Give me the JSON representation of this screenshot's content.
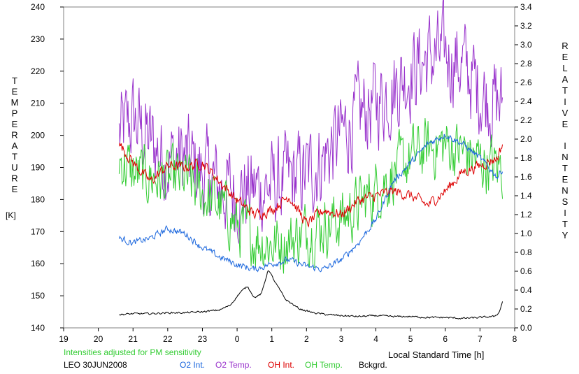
{
  "chart_data": {
    "type": "line",
    "left_axis": {
      "label_letters": [
        "T",
        "E",
        "M",
        "P",
        "E",
        "R",
        "A",
        "T",
        "U",
        "R",
        "E"
      ],
      "unit": "[K]",
      "ylim": [
        140,
        240
      ],
      "ticks": [
        "140",
        "150",
        "160",
        "170",
        "180",
        "190",
        "200",
        "210",
        "220",
        "230",
        "240"
      ]
    },
    "right_axis": {
      "label_letters_1": [
        "R",
        "E",
        "L",
        "A",
        "T",
        "I",
        "V",
        "E"
      ],
      "label_letters_2": [
        "I",
        "N",
        "T",
        "E",
        "N",
        "S",
        "I",
        "T",
        "Y"
      ],
      "ylim": [
        0.0,
        3.4
      ],
      "ticks": [
        "0.0",
        "0.2",
        "0.4",
        "0.6",
        "0.8",
        "1.0",
        "1.2",
        "1.4",
        "1.6",
        "1.8",
        "2.0",
        "2.2",
        "2.4",
        "2.6",
        "2.8",
        "3.0",
        "3.2",
        "3.4"
      ]
    },
    "x_axis": {
      "label": "Local Standard Time [h]",
      "xlim": [
        19,
        32
      ],
      "ticks": [
        "19",
        "20",
        "21",
        "22",
        "23",
        "0",
        "1",
        "2",
        "3",
        "4",
        "5",
        "6",
        "7",
        "8"
      ]
    },
    "note": "Intensities adjusted for PM sensitivity",
    "station": "LEO 30JUN2008",
    "series": [
      {
        "name": "O2 Temp.",
        "axis": "left",
        "color": "#9933cc",
        "noise": 12,
        "x": [
          20.6,
          21.0,
          21.5,
          22.0,
          22.5,
          23.0,
          23.5,
          24.0,
          24.5,
          25.0,
          25.5,
          26.0,
          26.5,
          27.0,
          27.5,
          28.0,
          28.5,
          29.0,
          29.5,
          30.0,
          30.5,
          31.0,
          31.5,
          31.65
        ],
        "y": [
          200,
          205,
          198,
          192,
          193,
          188,
          184,
          182,
          183,
          184,
          186,
          188,
          193,
          200,
          206,
          210,
          215,
          220,
          224,
          225,
          222,
          214,
          210,
          209
        ]
      },
      {
        "name": "OH Temp.",
        "axis": "left",
        "color": "#33cc33",
        "noise": 8,
        "x": [
          20.6,
          21.0,
          21.5,
          22.0,
          22.5,
          23.0,
          23.5,
          24.0,
          24.5,
          25.0,
          25.5,
          26.0,
          26.5,
          27.0,
          27.5,
          28.0,
          28.5,
          29.0,
          29.5,
          30.0,
          30.5,
          31.0,
          31.5,
          31.65
        ],
        "y": [
          193,
          188,
          187,
          186,
          186,
          182,
          178,
          172,
          168,
          166,
          167,
          170,
          172,
          174,
          178,
          183,
          188,
          193,
          196,
          197,
          195,
          192,
          190,
          190
        ]
      },
      {
        "name": "OH Int.",
        "axis": "right",
        "color": "#dd0000",
        "noise": 0.05,
        "x": [
          20.6,
          21.0,
          21.5,
          22.0,
          22.5,
          23.0,
          23.5,
          24.0,
          24.5,
          25.0,
          25.5,
          26.0,
          26.5,
          27.0,
          27.5,
          28.0,
          28.5,
          29.0,
          29.5,
          30.0,
          30.5,
          31.0,
          31.5,
          31.65
        ],
        "y": [
          1.95,
          1.75,
          1.55,
          1.72,
          1.7,
          1.75,
          1.55,
          1.35,
          1.2,
          1.25,
          1.4,
          1.1,
          1.25,
          1.2,
          1.35,
          1.4,
          1.45,
          1.4,
          1.3,
          1.45,
          1.65,
          1.72,
          1.8,
          1.95
        ]
      },
      {
        "name": "O2 Int.",
        "axis": "right",
        "color": "#1a66dd",
        "noise": 0.03,
        "x": [
          20.6,
          21.0,
          21.5,
          22.0,
          22.5,
          23.0,
          23.5,
          24.0,
          24.5,
          25.0,
          25.5,
          26.0,
          26.5,
          27.0,
          27.5,
          28.0,
          28.5,
          29.0,
          29.5,
          30.0,
          30.5,
          31.0,
          31.5,
          31.65
        ],
        "y": [
          0.95,
          0.9,
          0.95,
          1.05,
          1.0,
          0.85,
          0.75,
          0.67,
          0.62,
          0.68,
          0.72,
          0.65,
          0.62,
          0.72,
          0.9,
          1.15,
          1.55,
          1.75,
          1.95,
          2.05,
          1.95,
          1.8,
          1.6,
          1.68
        ]
      },
      {
        "name": "Bckgrd.",
        "axis": "right",
        "color": "#000000",
        "noise": 0.008,
        "x": [
          20.6,
          21.0,
          21.5,
          22.0,
          22.5,
          23.0,
          23.5,
          23.8,
          24.1,
          24.3,
          24.5,
          24.7,
          24.9,
          25.1,
          25.4,
          25.8,
          26.2,
          26.6,
          27.0,
          27.5,
          28.0,
          28.5,
          29.0,
          29.5,
          30.0,
          30.5,
          31.0,
          31.4,
          31.55,
          31.65
        ],
        "y": [
          0.14,
          0.15,
          0.15,
          0.16,
          0.16,
          0.17,
          0.19,
          0.24,
          0.38,
          0.44,
          0.32,
          0.36,
          0.62,
          0.48,
          0.3,
          0.2,
          0.16,
          0.14,
          0.13,
          0.12,
          0.13,
          0.12,
          0.12,
          0.11,
          0.11,
          0.1,
          0.11,
          0.12,
          0.16,
          0.28
        ]
      }
    ],
    "grid": false,
    "legend": "bottom"
  }
}
